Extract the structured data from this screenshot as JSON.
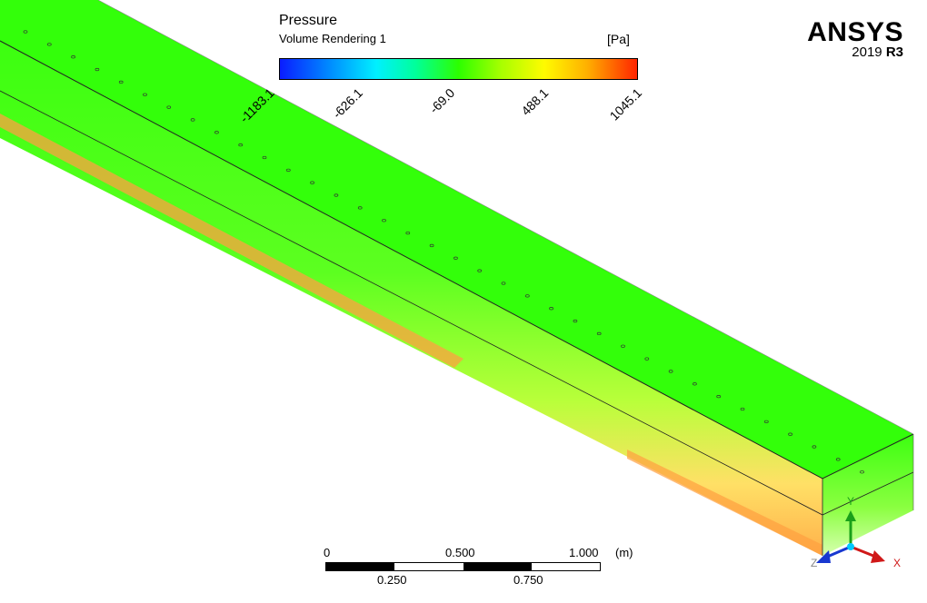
{
  "brand": {
    "name": "ANSYS",
    "version": "2019",
    "release": "R3"
  },
  "legend": {
    "variable": "Pressure",
    "subtitle": "Volume Rendering 1",
    "unit": "[Pa]",
    "ticks": [
      "-1183.1",
      "-626.1",
      "-69.0",
      "488.1",
      "1045.1"
    ],
    "colormap": [
      "#0a1cff",
      "#00f0ff",
      "#2cff00",
      "#fffb00",
      "#ff2400"
    ]
  },
  "scale_bar": {
    "top_labels": [
      "0",
      "0.500",
      "1.000"
    ],
    "unit": "(m)",
    "bottom_labels": [
      "0.250",
      "0.750"
    ]
  },
  "axes": {
    "x_label": "X",
    "y_label": "Y",
    "z_label": "Z"
  }
}
